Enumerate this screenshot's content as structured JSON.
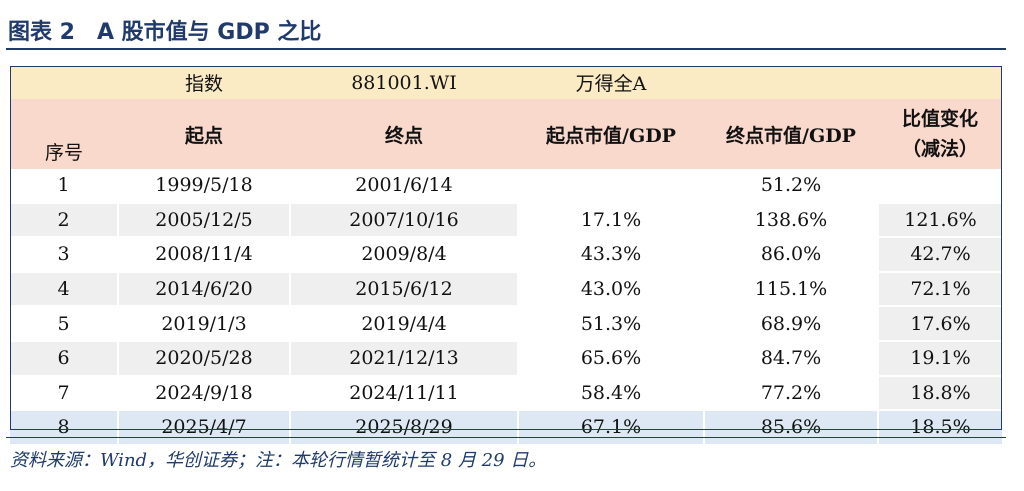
{
  "title": "图表 2　A 股市值与 GDP 之比",
  "index_row": {
    "label": "指数",
    "code": "881001.WI",
    "name": "万得全A"
  },
  "headers": {
    "seq": "序号",
    "start": "起点",
    "end": "终点",
    "start_mv": "起点市值/GDP",
    "end_mv": "终点市值/GDP",
    "ratio_line1": "比值变化",
    "ratio_line2": "（减法）"
  },
  "rows": [
    {
      "seq": "1",
      "start": "1999/5/18",
      "end": "2001/6/14",
      "start_mv": "",
      "end_mv": "51.2%",
      "change": ""
    },
    {
      "seq": "2",
      "start": "2005/12/5",
      "end": "2007/10/16",
      "start_mv": "17.1%",
      "end_mv": "138.6%",
      "change": "121.6%"
    },
    {
      "seq": "3",
      "start": "2008/11/4",
      "end": "2009/8/4",
      "start_mv": "43.3%",
      "end_mv": "86.0%",
      "change": "42.7%"
    },
    {
      "seq": "4",
      "start": "2014/6/20",
      "end": "2015/6/12",
      "start_mv": "43.0%",
      "end_mv": "115.1%",
      "change": "72.1%"
    },
    {
      "seq": "5",
      "start": "2019/1/3",
      "end": "2019/4/4",
      "start_mv": "51.3%",
      "end_mv": "68.9%",
      "change": "17.6%"
    },
    {
      "seq": "6",
      "start": "2020/5/28",
      "end": "2021/12/13",
      "start_mv": "65.6%",
      "end_mv": "84.7%",
      "change": "19.1%"
    },
    {
      "seq": "7",
      "start": "2024/9/18",
      "end": "2024/11/11",
      "start_mv": "58.4%",
      "end_mv": "77.2%",
      "change": "18.8%"
    },
    {
      "seq": "8",
      "start": "2025/4/7",
      "end": "2025/8/29",
      "start_mv": "67.1%",
      "end_mv": "85.6%",
      "change": "18.5%"
    }
  ],
  "source_note": "资料来源：Wind，华创证券；注：本轮行情暂统计至 8 月 29 日。"
}
